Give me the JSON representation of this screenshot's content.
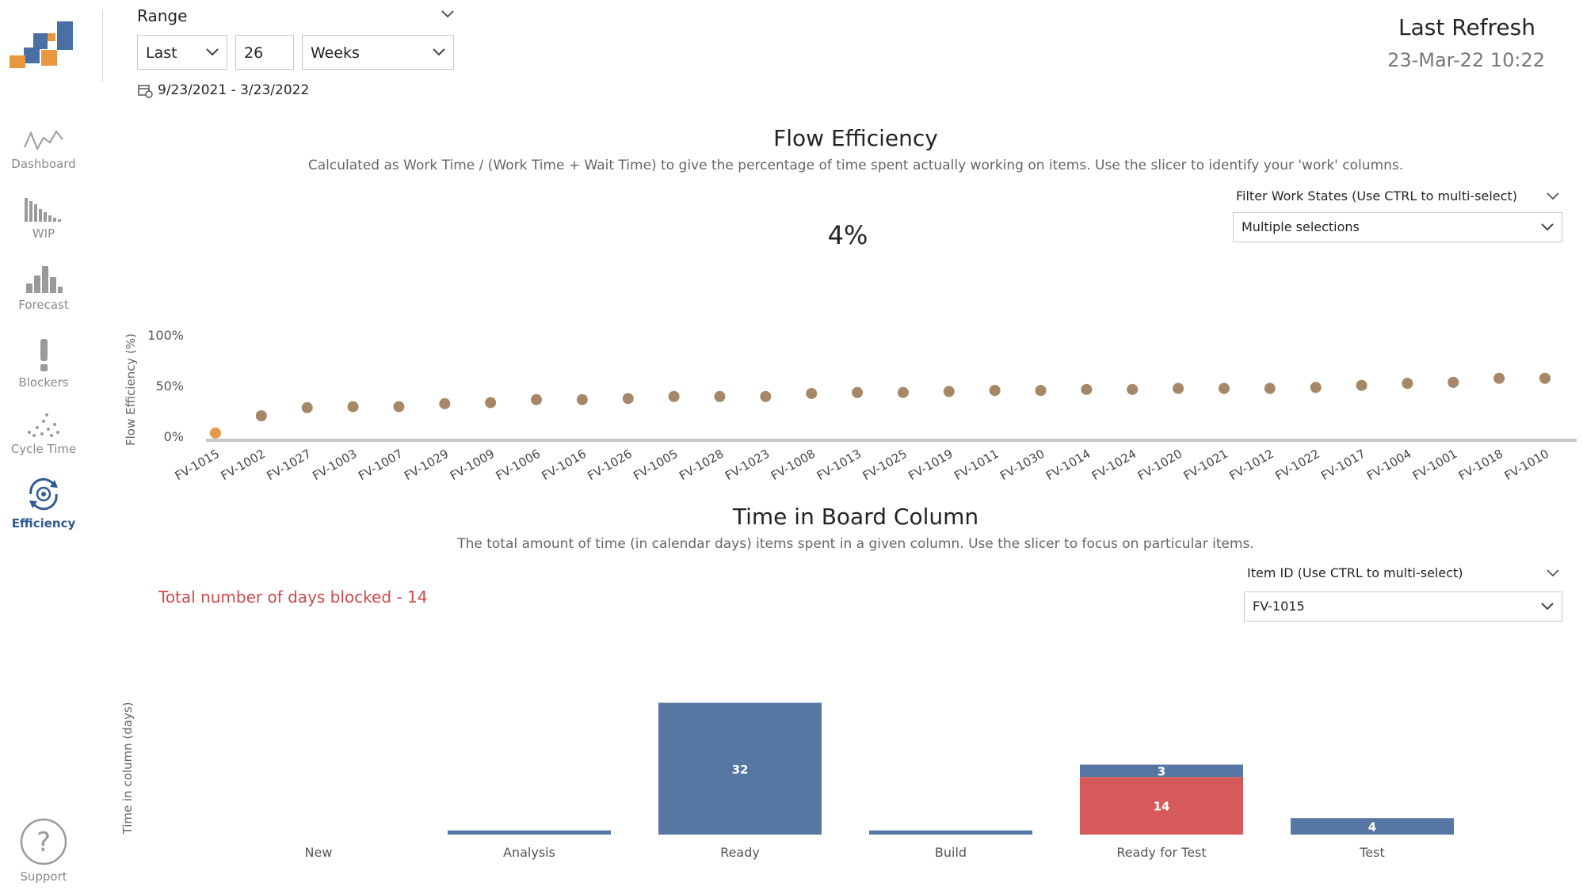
{
  "nav": {
    "items": [
      {
        "label": "Dashboard",
        "icon": "line-chart-icon"
      },
      {
        "label": "WIP",
        "icon": "bar-decay-icon"
      },
      {
        "label": "Forecast",
        "icon": "histogram-icon"
      },
      {
        "label": "Blockers",
        "icon": "exclamation-icon"
      },
      {
        "label": "Cycle Time",
        "icon": "scatter-icon"
      },
      {
        "label": "Efficiency",
        "icon": "cycle-gear-icon"
      }
    ],
    "support": "Support",
    "support_icon": "question-icon",
    "active": "Efficiency"
  },
  "range": {
    "label": "Range",
    "mode": "Last",
    "count": "26",
    "unit": "Weeks",
    "date_span": "9/23/2021 - 3/23/2022",
    "calendar_icon": "calendar-icon"
  },
  "refresh": {
    "label": "Last Refresh",
    "value": "23-Mar-22 10:22"
  },
  "flow": {
    "title": "Flow Efficiency",
    "subtitle": "Calculated as Work Time / (Work Time + Wait Time) to give the percentage of time spent actually working on items. Use the slicer to identify your 'work' columns.",
    "kpi": "4%",
    "slicer_label": "Filter Work States (Use CTRL to multi-select)",
    "slicer_value": "Multiple selections"
  },
  "board": {
    "title": "Time in Board Column",
    "subtitle": "The total amount of time (in calendar days) items spent in a given column. Use the slicer to focus on particular items.",
    "blocked_text": "Total number of days blocked - 14",
    "slicer_label": "Item ID (Use CTRL to multi-select)",
    "slicer_value": "FV-1015"
  },
  "colors": {
    "accent": "#2f5a93",
    "orange": "#e8973f",
    "dot": "#a68868",
    "dot_highlight": "#e49a4e",
    "bar_blue": "#5677a3",
    "bar_red": "#d65a5a",
    "blocked_red": "#d0494a"
  },
  "chart_data": [
    {
      "type": "scatter",
      "title": "",
      "xlabel": "",
      "ylabel": "Flow Efficiency (%)",
      "ylim": [
        0,
        100
      ],
      "yticks": [
        "0%",
        "50%",
        "100%"
      ],
      "highlighted": "FV-1015",
      "categories": [
        "FV-1015",
        "FV-1002",
        "FV-1027",
        "FV-1003",
        "FV-1007",
        "FV-1029",
        "FV-1009",
        "FV-1006",
        "FV-1016",
        "FV-1026",
        "FV-1005",
        "FV-1028",
        "FV-1023",
        "FV-1008",
        "FV-1013",
        "FV-1025",
        "FV-1019",
        "FV-1011",
        "FV-1030",
        "FV-1014",
        "FV-1024",
        "FV-1020",
        "FV-1021",
        "FV-1012",
        "FV-1022",
        "FV-1017",
        "FV-1004",
        "FV-1001",
        "FV-1018",
        "FV-1010"
      ],
      "values": [
        4,
        21,
        29,
        30,
        30,
        33,
        34,
        37,
        37,
        38,
        40,
        40,
        40,
        43,
        44,
        44,
        45,
        46,
        46,
        47,
        47,
        48,
        48,
        48,
        49,
        51,
        53,
        54,
        58,
        58
      ],
      "grid": false,
      "legend": "none"
    },
    {
      "type": "bar",
      "title": "",
      "xlabel": "",
      "ylabel": "Time in column (days)",
      "categories": [
        "New",
        "Analysis",
        "Ready",
        "Build",
        "Ready for Test",
        "Test"
      ],
      "series": [
        {
          "values": [
            0,
            1,
            32,
            1,
            3,
            4
          ]
        },
        {
          "values": [
            0,
            0,
            0,
            0,
            14,
            0
          ]
        }
      ],
      "series_colors": [
        "#5677a3",
        "#d65a5a"
      ],
      "data_labels": [
        {
          "category": "Ready",
          "series": 0,
          "text": "32"
        },
        {
          "category": "Ready for Test",
          "series": 0,
          "text": "3"
        },
        {
          "category": "Ready for Test",
          "series": 1,
          "text": "14"
        },
        {
          "category": "Test",
          "series": 0,
          "text": "4"
        }
      ],
      "stacked": true,
      "grid": false,
      "legend": "none"
    }
  ]
}
